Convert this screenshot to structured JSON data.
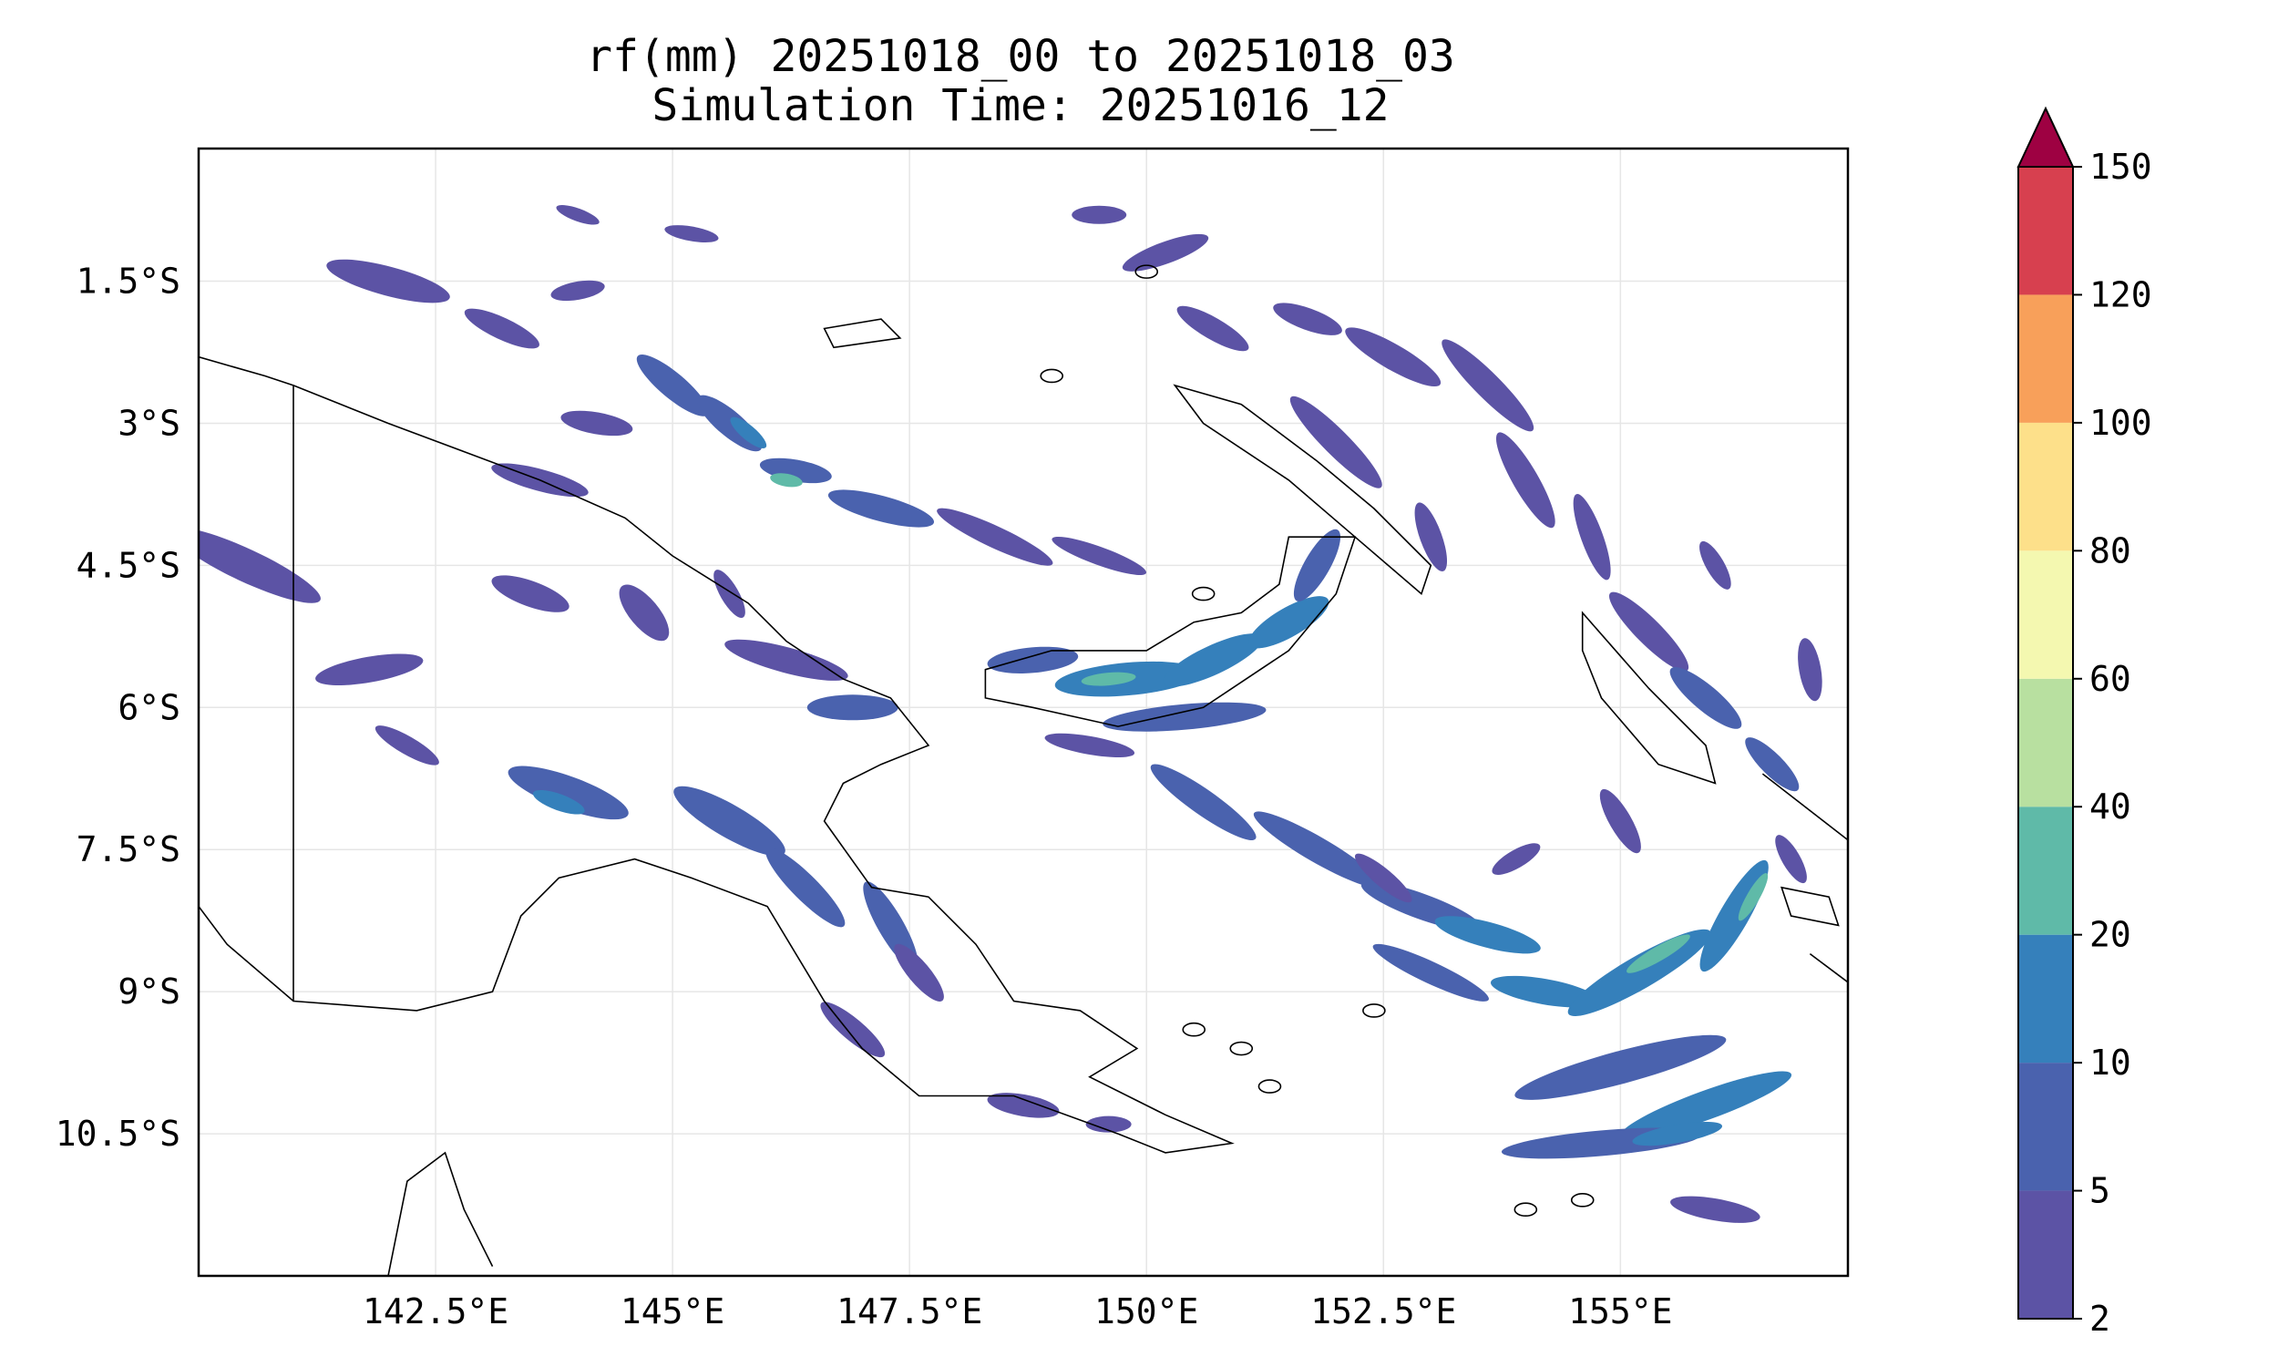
{
  "title_line_1": "rf(mm) 20251018_00 to 20251018_03",
  "title_line_2": "Simulation Time: 20251016_12",
  "map": {
    "lon_range": [
      140.0,
      157.4
    ],
    "lat_range": [
      -12.0,
      -0.1
    ],
    "lon_ticks": [
      {
        "value": 142.5,
        "label": "142.5°E"
      },
      {
        "value": 145.0,
        "label": "145°E"
      },
      {
        "value": 147.5,
        "label": "147.5°E"
      },
      {
        "value": 150.0,
        "label": "150°E"
      },
      {
        "value": 152.5,
        "label": "152.5°E"
      },
      {
        "value": 155.0,
        "label": "155°E"
      }
    ],
    "lat_ticks": [
      {
        "value": -1.5,
        "label": "1.5°S"
      },
      {
        "value": -3.0,
        "label": "3°S"
      },
      {
        "value": -4.5,
        "label": "4.5°S"
      },
      {
        "value": -6.0,
        "label": "6°S"
      },
      {
        "value": -7.5,
        "label": "7.5°S"
      },
      {
        "value": -9.0,
        "label": "9°S"
      },
      {
        "value": -10.5,
        "label": "10.5°S"
      }
    ],
    "grid": true
  },
  "colorbar": {
    "labels": [
      "2",
      "5",
      "10",
      "20",
      "40",
      "60",
      "80",
      "100",
      "120",
      "150"
    ],
    "colors": [
      "#5c53a5",
      "#4a62ae",
      "#3580bb",
      "#5fbaa8",
      "#b8e0a0",
      "#f4f8b0",
      "#fde08a",
      "#f8a05a",
      "#d7404f"
    ],
    "extend_color": "#9e0142"
  },
  "rain_colors": {
    "light": "#5c53a5",
    "moderate": "#4a62ae",
    "heavy": "#3580bb",
    "intense": "#5fbaa8"
  }
}
